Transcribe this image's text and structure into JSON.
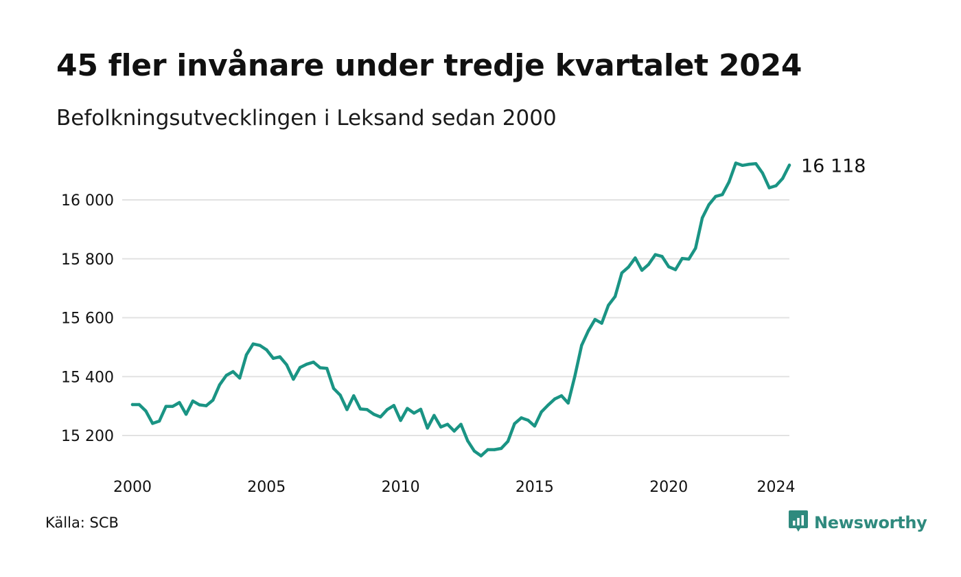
{
  "header": {
    "title": "45 fler invånare under tredje kvartalet 2024",
    "subtitle": "Befolkningsutvecklingen i Leksand sedan 2000"
  },
  "footer": {
    "source": "Källa: SCB",
    "brand": "Newsworthy",
    "brand_icon": "bar-chart-logo-icon"
  },
  "colors": {
    "line": "#1a9484",
    "grid": "#e2e2e2",
    "brand": "#2f8a7e"
  },
  "chart_data": {
    "type": "line",
    "title": "45 fler invånare under tredje kvartalet 2024",
    "subtitle": "Befolkningsutvecklingen i Leksand sedan 2000",
    "xlabel": "",
    "ylabel": "",
    "x_ticks": [
      2000,
      2005,
      2010,
      2015,
      2020,
      2024
    ],
    "x_tick_labels": [
      "2000",
      "2005",
      "2010",
      "2015",
      "2020",
      "2024"
    ],
    "y_ticks": [
      15200,
      15400,
      15600,
      15800,
      16000
    ],
    "y_tick_labels": [
      "15 200",
      "15 400",
      "15 600",
      "15 800",
      "16 000"
    ],
    "xlim": [
      2000,
      2024.5
    ],
    "ylim": [
      15100,
      16200
    ],
    "grid": true,
    "end_label": "16 118",
    "series": [
      {
        "x": [
          2000.0,
          2000.25,
          2000.5,
          2000.75,
          2001.0,
          2001.25,
          2001.5,
          2001.75,
          2002.0,
          2002.25,
          2002.5,
          2002.75,
          2003.0,
          2003.25,
          2003.5,
          2003.75,
          2004.0,
          2004.25,
          2004.5,
          2004.75,
          2005.0,
          2005.25,
          2005.5,
          2005.75,
          2006.0,
          2006.25,
          2006.5,
          2006.75,
          2007.0,
          2007.25,
          2007.5,
          2007.75,
          2008.0,
          2008.25,
          2008.5,
          2008.75,
          2009.0,
          2009.25,
          2009.5,
          2009.75,
          2010.0,
          2010.25,
          2010.5,
          2010.75,
          2011.0,
          2011.25,
          2011.5,
          2011.75,
          2012.0,
          2012.25,
          2012.5,
          2012.75,
          2013.0,
          2013.25,
          2013.5,
          2013.75,
          2014.0,
          2014.25,
          2014.5,
          2014.75,
          2015.0,
          2015.25,
          2015.5,
          2015.75,
          2016.0,
          2016.25,
          2016.5,
          2016.75,
          2017.0,
          2017.25,
          2017.5,
          2017.75,
          2018.0,
          2018.25,
          2018.5,
          2018.75,
          2019.0,
          2019.25,
          2019.5,
          2019.75,
          2020.0,
          2020.25,
          2020.5,
          2020.75,
          2021.0,
          2021.25,
          2021.5,
          2021.75,
          2022.0,
          2022.25,
          2022.5,
          2022.75,
          2023.0,
          2023.25,
          2023.5,
          2023.75,
          2024.0,
          2024.25,
          2024.5
        ],
        "values": [
          15305,
          15305,
          15283,
          15241,
          15249,
          15299,
          15299,
          15312,
          15272,
          15317,
          15304,
          15301,
          15320,
          15372,
          15404,
          15417,
          15395,
          15474,
          15511,
          15506,
          15491,
          15462,
          15467,
          15440,
          15391,
          15431,
          15442,
          15449,
          15430,
          15428,
          15360,
          15337,
          15288,
          15335,
          15290,
          15288,
          15272,
          15263,
          15288,
          15302,
          15251,
          15292,
          15276,
          15289,
          15225,
          15268,
          15229,
          15238,
          15215,
          15238,
          15182,
          15147,
          15131,
          15152,
          15152,
          15156,
          15180,
          15240,
          15260,
          15252,
          15232,
          15280,
          15303,
          15324,
          15335,
          15310,
          15402,
          15506,
          15555,
          15594,
          15581,
          15642,
          15672,
          15752,
          15772,
          15803,
          15761,
          15781,
          15814,
          15808,
          15773,
          15763,
          15801,
          15799,
          15836,
          15939,
          15984,
          16012,
          16018,
          16061,
          16125,
          16117,
          16121,
          16123,
          16091,
          16041,
          16048,
          16073,
          16118
        ]
      }
    ]
  }
}
